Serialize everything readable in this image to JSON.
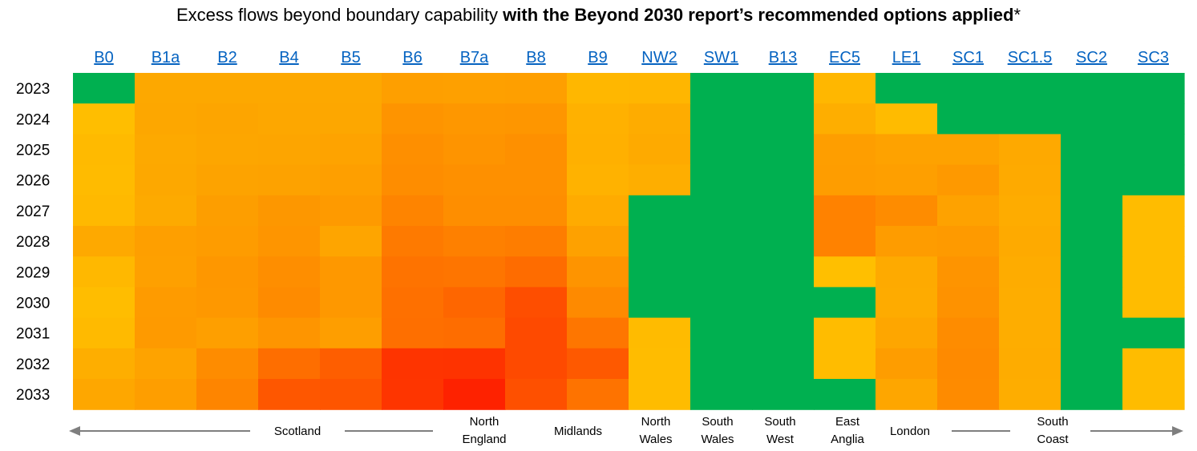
{
  "title": {
    "prefix": "Excess flows beyond boundary capability ",
    "bold": "with the Beyond 2030 report’s recommended options applied",
    "suffix": "*"
  },
  "chart_data": {
    "type": "heatmap",
    "title": "Excess flows beyond boundary capability with the Beyond 2030 report’s recommended options applied*",
    "columns": [
      "B0",
      "B1a",
      "B2",
      "B4",
      "B5",
      "B6",
      "B7a",
      "B8",
      "B9",
      "NW2",
      "SW1",
      "B13",
      "EC5",
      "LE1",
      "SC1",
      "SC1.5",
      "SC2",
      "SC3"
    ],
    "rows": [
      "2023",
      "2024",
      "2025",
      "2026",
      "2027",
      "2028",
      "2029",
      "2030",
      "2031",
      "2032",
      "2033"
    ],
    "colors": [
      [
        "#00b050",
        "#fda800",
        "#fda800",
        "#fda800",
        "#fda800",
        "#fe9f00",
        "#fea000",
        "#fe9f00",
        "#ffb700",
        "#ffb600",
        "#00b050",
        "#00b050",
        "#ffb700",
        "#00b050",
        "#00b050",
        "#00b050",
        "#00b050",
        "#00b050"
      ],
      [
        "#ffbe00",
        "#fda700",
        "#fda500",
        "#fda700",
        "#fda700",
        "#fe9400",
        "#fe9700",
        "#fe9600",
        "#ffb100",
        "#feac00",
        "#00b050",
        "#00b050",
        "#feae00",
        "#ffbb00",
        "#00b050",
        "#00b050",
        "#00b050",
        "#00b050"
      ],
      [
        "#ffba00",
        "#fda900",
        "#fda600",
        "#fda500",
        "#fea300",
        "#fe8f00",
        "#fe9400",
        "#fe9000",
        "#ffb000",
        "#feaa00",
        "#00b050",
        "#00b050",
        "#fe9e00",
        "#fea200",
        "#fea200",
        "#fea900",
        "#00b050",
        "#00b050"
      ],
      [
        "#ffbb00",
        "#fda800",
        "#fda300",
        "#fda200",
        "#fe9f00",
        "#fe8d00",
        "#fe9000",
        "#fe9000",
        "#ffb200",
        "#feae00",
        "#00b050",
        "#00b050",
        "#fe9d00",
        "#fe9f00",
        "#fe9900",
        "#feaa00",
        "#00b050",
        "#00b050"
      ],
      [
        "#ffb900",
        "#fdaa00",
        "#fd9e00",
        "#fd9700",
        "#fe9a00",
        "#fe8400",
        "#fe8e00",
        "#fe8e00",
        "#ffab00",
        "#00b050",
        "#00b050",
        "#00b050",
        "#ff8200",
        "#fe8c00",
        "#fea200",
        "#feac00",
        "#00b050",
        "#ffbc00"
      ],
      [
        "#fea900",
        "#fe9f00",
        "#fe9c00",
        "#fe9500",
        "#fea500",
        "#fe7a00",
        "#fe8000",
        "#fe7d00",
        "#fea100",
        "#00b050",
        "#00b050",
        "#00b050",
        "#ff8200",
        "#fe9c00",
        "#fe9a00",
        "#feaa00",
        "#00b050",
        "#ffbc00"
      ],
      [
        "#ffb800",
        "#fea000",
        "#fe9700",
        "#fe8e00",
        "#fe9800",
        "#fe7300",
        "#fe7500",
        "#fe6c00",
        "#fe9400",
        "#00b050",
        "#00b050",
        "#00b050",
        "#ffbf00",
        "#feaa00",
        "#fe9400",
        "#feac00",
        "#00b050",
        "#ffbc00"
      ],
      [
        "#ffbd00",
        "#fe9b00",
        "#fe9800",
        "#fe8b00",
        "#fe9800",
        "#fe7000",
        "#fe6600",
        "#fe4e00",
        "#fe8a00",
        "#00b050",
        "#00b050",
        "#00b050",
        "#00b050",
        "#feab00",
        "#fe9200",
        "#fead00",
        "#00b050",
        "#ffbc00"
      ],
      [
        "#ffba00",
        "#fe9a00",
        "#fe9f00",
        "#fe9500",
        "#fe9e00",
        "#fe6f00",
        "#fe6d00",
        "#fe4a00",
        "#fe7600",
        "#ffbb00",
        "#00b050",
        "#00b050",
        "#ffbc00",
        "#fea600",
        "#fe8c00",
        "#fead00",
        "#00b050",
        "#00b050"
      ],
      [
        "#feae00",
        "#fea300",
        "#fe8c00",
        "#fe6e00",
        "#fe5e00",
        "#fe3400",
        "#fe3300",
        "#fe4a00",
        "#fe5900",
        "#ffbc00",
        "#00b050",
        "#00b050",
        "#ffbc00",
        "#fe9d00",
        "#fe8a00",
        "#feac00",
        "#00b050",
        "#ffbc00"
      ],
      [
        "#fea700",
        "#fe9e00",
        "#fe8500",
        "#fe5700",
        "#fe5500",
        "#fe3500",
        "#fe2200",
        "#fe5000",
        "#fe7300",
        "#ffbc00",
        "#00b050",
        "#00b050",
        "#00b050",
        "#fea600",
        "#fe8b00",
        "#fead00",
        "#00b050",
        "#ffbc00"
      ]
    ],
    "regions": [
      {
        "lines": [
          "Scotland"
        ],
        "arrow_left": true
      },
      {
        "lines": [
          "North",
          "England"
        ]
      },
      {
        "lines": [
          "Midlands"
        ]
      },
      {
        "lines": [
          "North",
          "Wales"
        ]
      },
      {
        "lines": [
          "South",
          "Wales"
        ]
      },
      {
        "lines": [
          "South",
          "West"
        ]
      },
      {
        "lines": [
          "East",
          "Anglia"
        ]
      },
      {
        "lines": [
          "London"
        ]
      },
      {
        "lines": [
          "South",
          "Coast"
        ],
        "arrow_right": true
      }
    ],
    "arrow_color": "#7f7f7f",
    "link_color": "#0563c1"
  }
}
